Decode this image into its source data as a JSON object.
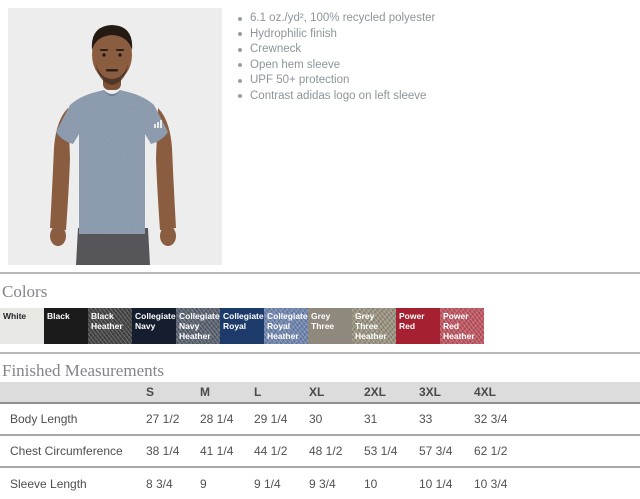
{
  "product": {
    "features": [
      "6.1 oz./yd², 100% recycled polyester",
      "Hydrophilic finish",
      "Crewneck",
      "Open hem sleeve",
      "UPF 50+ protection",
      "Contrast adidas logo on left sleeve"
    ]
  },
  "colors_section": {
    "heading": "Colors",
    "swatches": [
      {
        "name": "White",
        "bg": "#e8e8e5",
        "text_color": "#26262e",
        "heather": false
      },
      {
        "name": "Black",
        "bg": "#1b1b1b",
        "text_color": "#ffffff",
        "heather": false
      },
      {
        "name": "Black Heather",
        "bg": "#454545",
        "text_color": "#ffffff",
        "heather": true
      },
      {
        "name": "Collegiate Navy",
        "bg": "#151e2e",
        "text_color": "#ffffff",
        "heather": false
      },
      {
        "name": "Collegiate Navy Heather",
        "bg": "#59606e",
        "text_color": "#ffffff",
        "heather": true
      },
      {
        "name": "Collegiate Royal",
        "bg": "#1d3b6a",
        "text_color": "#ffffff",
        "heather": false
      },
      {
        "name": "Collegiate Royal Heather",
        "bg": "#6e84ae",
        "text_color": "#ffffff",
        "heather": true
      },
      {
        "name": "Grey Three",
        "bg": "#8e897c",
        "text_color": "#ffffff",
        "heather": false
      },
      {
        "name": "Grey Three Heather",
        "bg": "#98927f",
        "text_color": "#ffffff",
        "heather": true
      },
      {
        "name": "Power Red",
        "bg": "#a52030",
        "text_color": "#ffffff",
        "heather": false
      },
      {
        "name": "Power Red Heather",
        "bg": "#bf5560",
        "text_color": "#ffffff",
        "heather": true
      }
    ]
  },
  "measurements_section": {
    "heading": "Finished Measurements",
    "size_columns": [
      "S",
      "M",
      "L",
      "XL",
      "2XL",
      "3XL",
      "4XL"
    ],
    "rows": [
      {
        "label": "Body Length",
        "values": [
          "27 1/2",
          "28 1/4",
          "29 1/4",
          "30",
          "31",
          "33",
          "32 3/4"
        ]
      },
      {
        "label": "Chest Circumference",
        "values": [
          "38 1/4",
          "41 1/4",
          "44 1/2",
          "48 1/2",
          "53 1/4",
          "57 3/4",
          "62 1/2"
        ]
      },
      {
        "label": "Sleeve Length",
        "values": [
          "8 3/4",
          "9",
          "9 1/4",
          "9 3/4",
          "10",
          "10 1/4",
          "10 3/4"
        ]
      }
    ]
  }
}
